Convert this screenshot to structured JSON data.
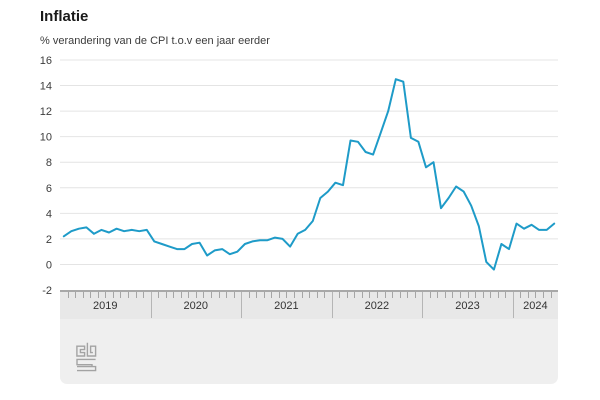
{
  "header": {
    "title": "Inflatie",
    "subtitle": "% verandering van de CPI t.o.v een jaar eerder"
  },
  "footer": {
    "logo_icon": "cbs-logo"
  },
  "colors": {
    "line": "#1e9bc8",
    "grid": "#e4e4e4",
    "axis_border": "#a8a8a8",
    "panel_bg": "#efefef",
    "strip_bg": "#e8e8e8",
    "month_tick": "#a5a5a5",
    "year_separator": "#b5b5b5",
    "text_dark": "#1a1a1a",
    "text_medium": "#3c3c3c",
    "logo_gray": "#a3a3a3"
  },
  "chart_data": {
    "type": "line",
    "title": "Inflatie",
    "subtitle": "% verandering van de CPI t.o.v een jaar eerder",
    "unit": "%",
    "x_start": "2019-01",
    "x_end": "2024-06",
    "xlabel": "",
    "ylabel": "% verandering van de CPI t.o.v een jaar eerder",
    "ylim": [
      -2,
      16
    ],
    "y_ticks": [
      16,
      14,
      12,
      10,
      8,
      6,
      4,
      2,
      0,
      -2
    ],
    "grid": true,
    "legend": "none",
    "years": [
      {
        "label": "2019",
        "months": 12
      },
      {
        "label": "2020",
        "months": 12
      },
      {
        "label": "2021",
        "months": 12
      },
      {
        "label": "2022",
        "months": 12
      },
      {
        "label": "2023",
        "months": 12
      },
      {
        "label": "2024",
        "months": 6
      }
    ],
    "series": [
      {
        "name": "Inflatie (CPI)",
        "color": "#1e9bc8",
        "values": [
          2.2,
          2.6,
          2.8,
          2.9,
          2.4,
          2.7,
          2.5,
          2.8,
          2.6,
          2.7,
          2.6,
          2.7,
          1.8,
          1.6,
          1.4,
          1.2,
          1.2,
          1.6,
          1.7,
          0.7,
          1.1,
          1.2,
          0.8,
          1.0,
          1.6,
          1.8,
          1.9,
          1.9,
          2.1,
          2.0,
          1.4,
          2.4,
          2.7,
          3.4,
          5.2,
          5.7,
          6.4,
          6.2,
          9.7,
          9.6,
          8.8,
          8.6,
          10.3,
          12.0,
          14.5,
          14.3,
          9.9,
          9.6,
          7.6,
          8.0,
          4.4,
          5.2,
          6.1,
          5.7,
          4.6,
          3.0,
          0.2,
          -0.4,
          1.6,
          1.2,
          3.2,
          2.8,
          3.1,
          2.7,
          2.7,
          3.2
        ]
      }
    ]
  }
}
